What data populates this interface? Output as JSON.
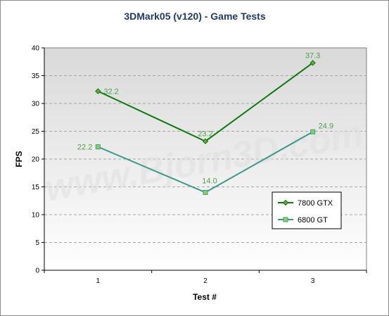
{
  "chart_data": {
    "type": "line",
    "title": "3DMark05 (v120) - Game Tests",
    "xlabel": "Test #",
    "ylabel": "FPS",
    "categories": [
      "1",
      "2",
      "3"
    ],
    "ylim": [
      0,
      40
    ],
    "yticks": [
      "0",
      "5",
      "10",
      "15",
      "20",
      "25",
      "30",
      "35",
      "40"
    ],
    "grid": true,
    "legend_position": "right",
    "watermark": "www.Bjorn3D.com",
    "series": [
      {
        "name": "7800 GTX",
        "values": [
          32.2,
          23.2,
          37.3
        ],
        "labels": [
          "32.2",
          "23.2",
          "37.3"
        ],
        "color": "#0b7a0b",
        "marker": "diamond"
      },
      {
        "name": "6800 GT",
        "values": [
          22.2,
          14.0,
          24.9
        ],
        "labels": [
          "22.2",
          "14.0",
          "24.9"
        ],
        "color": "#3a9a8a",
        "marker": "square"
      }
    ]
  }
}
